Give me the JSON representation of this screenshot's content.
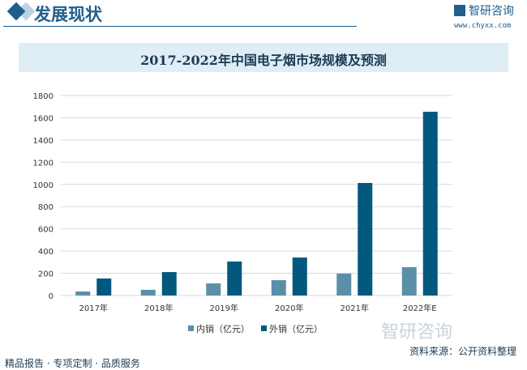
{
  "header": {
    "section_title": "发展现状",
    "logo_text": "智研咨询",
    "url": "www.chyxx.com"
  },
  "footer": {
    "left": "精品报告 · 专项定制 · 品质服务",
    "source": "资料来源：公开资料整理",
    "watermark": "智研咨询"
  },
  "colors": {
    "inner": "#5b8fa8",
    "outer": "#03587d",
    "grid": "#d9d9d9"
  },
  "chart_data": {
    "type": "bar",
    "title": "2017-2022年中国电子烟市场规模及预测",
    "categories": [
      "2017年",
      "2018年",
      "2019年",
      "2020年",
      "2021年",
      "2022年E"
    ],
    "series": [
      {
        "name": "内销（亿元）",
        "values": [
          36,
          51,
          109,
          138,
          197,
          255
        ]
      },
      {
        "name": "外销（亿元）",
        "values": [
          153,
          211,
          306,
          342,
          1013,
          1654
        ]
      }
    ],
    "ylim": [
      0,
      1800
    ],
    "yticks": [
      0,
      200,
      400,
      600,
      800,
      1000,
      1200,
      1400,
      1600,
      1800
    ],
    "grid": true,
    "legend": "bottom"
  }
}
